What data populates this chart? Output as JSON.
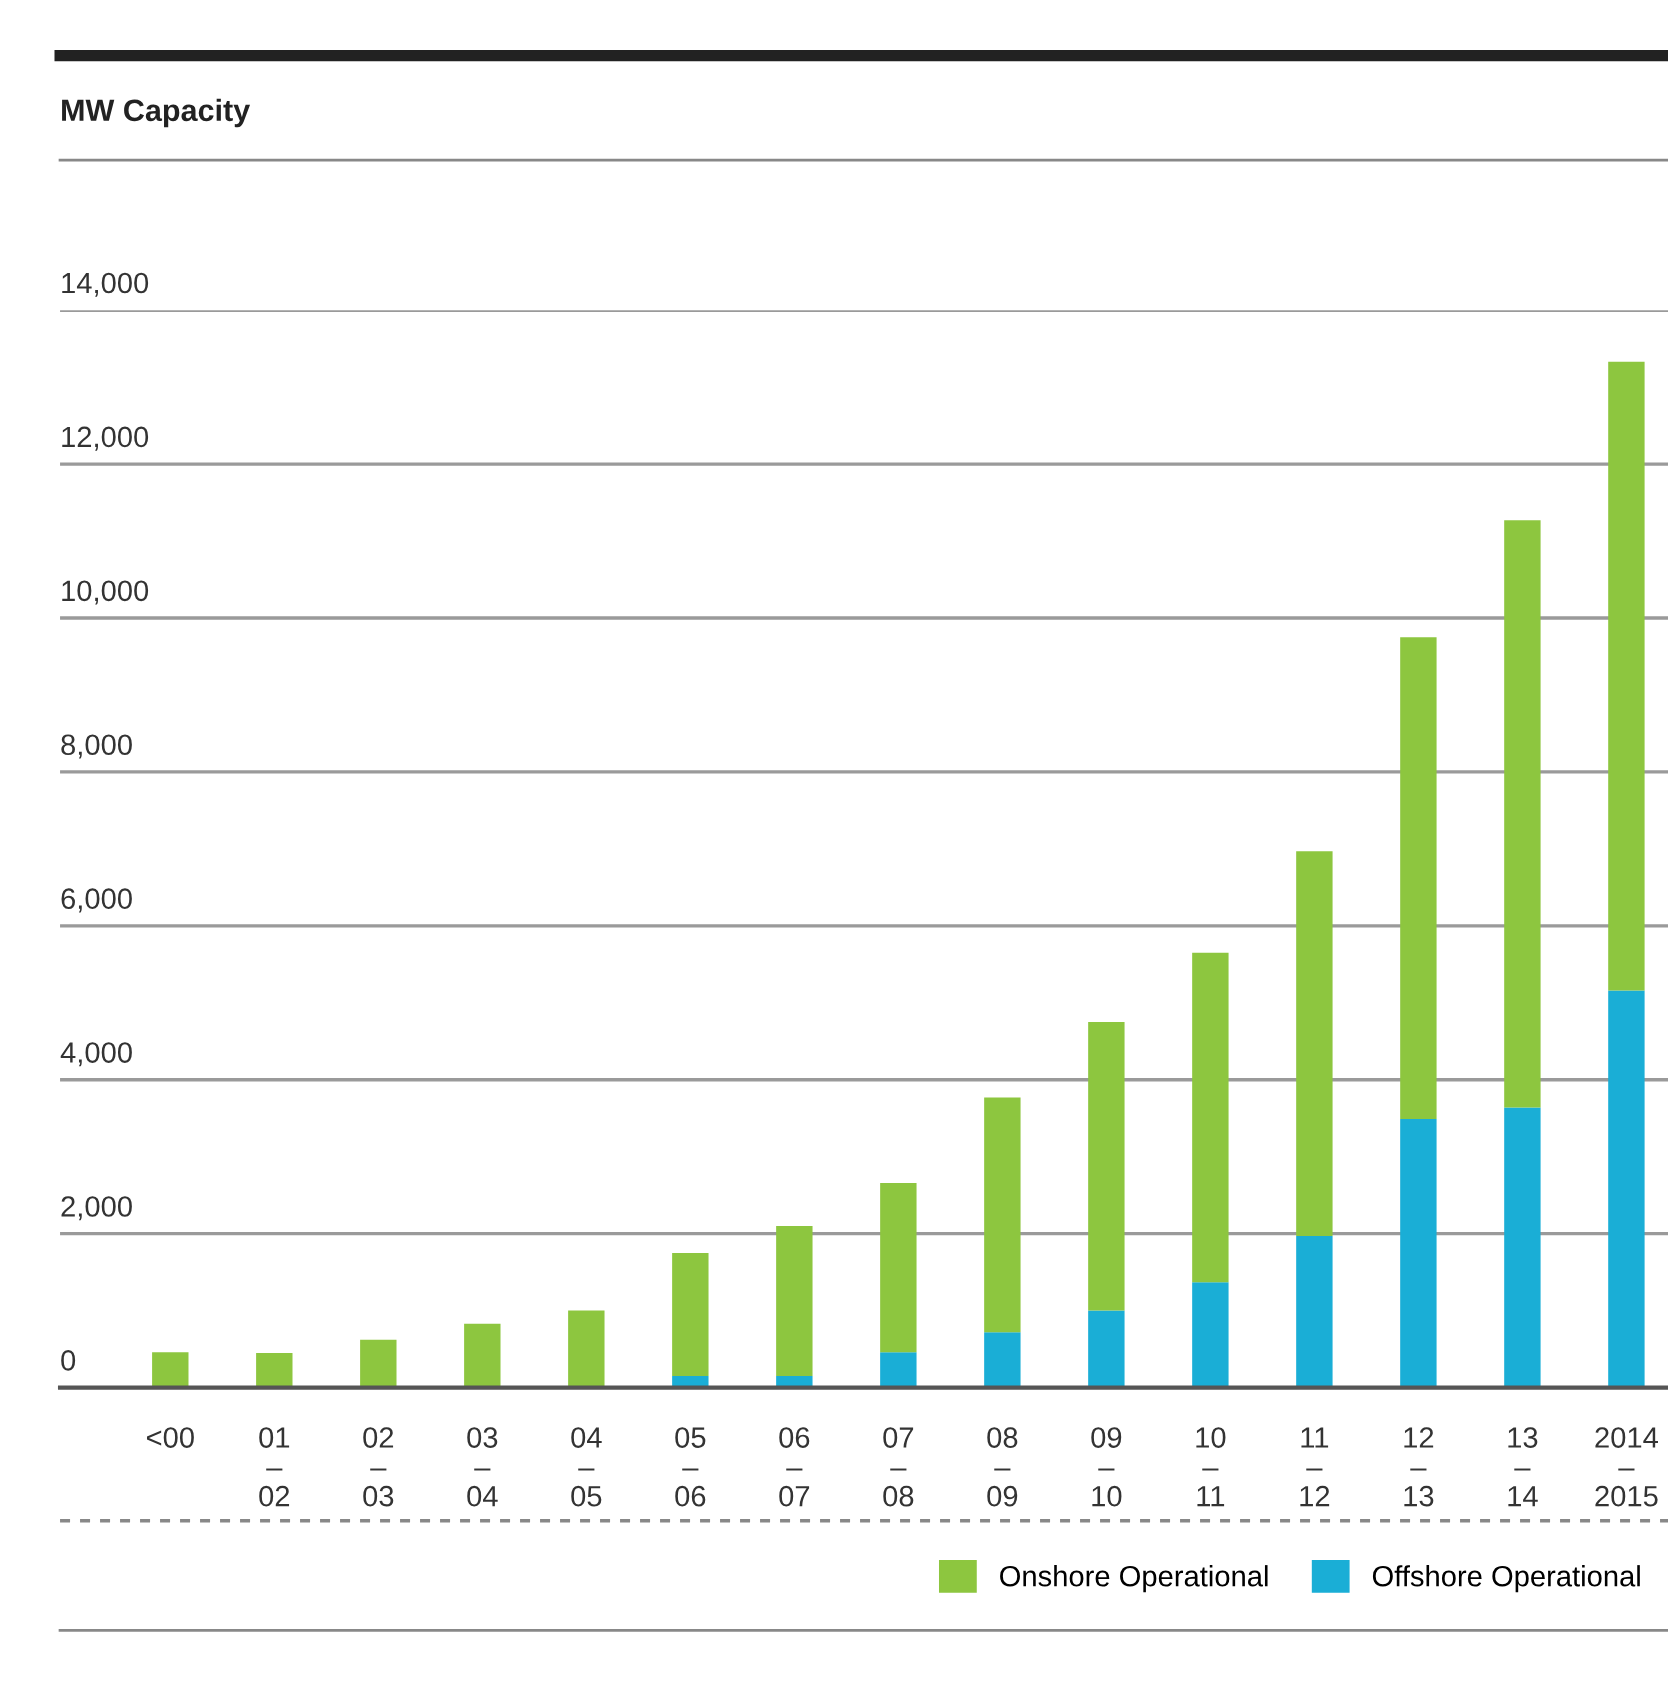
{
  "chart_data": {
    "type": "bar",
    "title": "MW Capacity",
    "stacked": true,
    "categories": [
      "<00",
      "01\n–\n02",
      "02\n–\n03",
      "03\n–\n04",
      "04\n–\n05",
      "05\n–\n06",
      "06\n–\n07",
      "07\n–\n08",
      "08\n–\n09",
      "09\n–\n10",
      "10\n–\n11",
      "11\n–\n12",
      "12\n–\n13",
      "13\n–\n14",
      "2014\n–\n2015"
    ],
    "series": [
      {
        "name": "Offshore Operational",
        "color": "#1aaed6",
        "values": [
          0,
          0,
          0,
          0,
          0,
          150,
          150,
          460,
          720,
          1000,
          1370,
          1970,
          3490,
          3640,
          5160
        ]
      },
      {
        "name": "Onshore Operational",
        "color": "#8dc63f",
        "values": [
          460,
          450,
          620,
          830,
          1000,
          1600,
          1950,
          2200,
          3050,
          3750,
          4280,
          5000,
          6260,
          7630,
          8170
        ]
      }
    ],
    "ylim": [
      0,
      14000
    ],
    "yticks": [
      {
        "value": 0,
        "label": "0"
      },
      {
        "value": 2000,
        "label": "2,000"
      },
      {
        "value": 4000,
        "label": "4,000"
      },
      {
        "value": 6000,
        "label": "6,000"
      },
      {
        "value": 8000,
        "label": "8,000"
      },
      {
        "value": 10000,
        "label": "10,000"
      },
      {
        "value": 12000,
        "label": "12,000"
      },
      {
        "value": 14000,
        "label": "14,000"
      }
    ],
    "grid": "y",
    "legend": "bottom right"
  }
}
